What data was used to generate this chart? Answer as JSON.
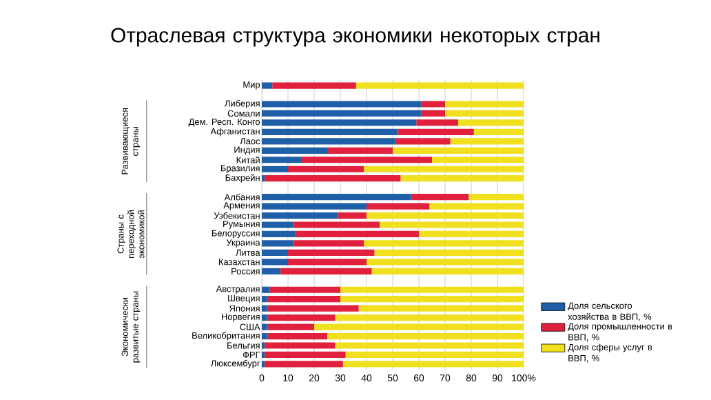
{
  "chart_data": {
    "type": "bar",
    "orientation": "horizontal",
    "stacked": true,
    "title": "Отраслевая структура экономики некоторых стран",
    "categories": [
      "Мир",
      null,
      "Либерия",
      "Сомали",
      "Дем. Респ. Конго",
      "Афганистан",
      "Лаос",
      "Индия",
      "Китай",
      "Бразилия",
      "Бахрейн",
      null,
      "Албания",
      "Армения",
      "Узбекистан",
      "Румыния",
      "Белоруссия",
      "Украина",
      "Литва",
      "Казахстан",
      "Россия",
      null,
      "Австралия",
      "Швеция",
      "Япония",
      "Норвегия",
      "США",
      "Великобритания",
      "Бельгия",
      "ФРГ",
      "Люксембург"
    ],
    "series": [
      {
        "name": "Доля сельского хозяйства в ВВП, %",
        "color": "#1f5fa8",
        "values": [
          4,
          null,
          61,
          61,
          59,
          52,
          51,
          25,
          15,
          10,
          1,
          null,
          57,
          40,
          29,
          12,
          13,
          12,
          10,
          10,
          7,
          null,
          3,
          2,
          2,
          2,
          2,
          2,
          1,
          1,
          1
        ]
      },
      {
        "name": "Доля промышленности в ВВП, %",
        "color": "#e0203c",
        "values": [
          32,
          null,
          9,
          9,
          16,
          29,
          21,
          25,
          50,
          29,
          52,
          null,
          22,
          24,
          11,
          33,
          47,
          27,
          33,
          30,
          35,
          null,
          27,
          28,
          35,
          26,
          18,
          23,
          27,
          31,
          30
        ]
      },
      {
        "name": "Доля сферы услуг в ВВП, %",
        "color": "#f0e020",
        "values": [
          64,
          null,
          30,
          30,
          25,
          19,
          28,
          50,
          35,
          61,
          47,
          null,
          21,
          36,
          60,
          55,
          40,
          61,
          57,
          60,
          58,
          null,
          70,
          70,
          63,
          72,
          80,
          75,
          72,
          68,
          69
        ]
      }
    ],
    "xlim": [
      0,
      100
    ],
    "xticks": [
      0,
      10,
      20,
      30,
      40,
      50,
      60,
      70,
      80,
      90,
      {
        "value": 100,
        "label": "100%"
      }
    ],
    "annotations": [
      "Развивающиеся страны",
      "Страны с переходной экономикой",
      "Экономически развитые страны"
    ],
    "grid": "x",
    "legend": "right"
  }
}
